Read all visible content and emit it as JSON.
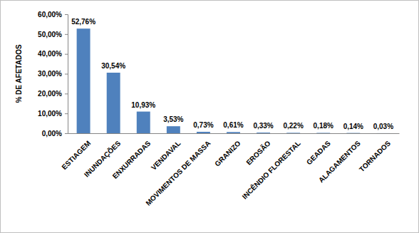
{
  "chart_data": {
    "type": "bar",
    "y_label": "% DE AFETADOS",
    "categories": [
      "ESTIAGEM",
      "INUNDAÇÕES",
      "ENXURRADAS",
      "VENDAVAL",
      "MOVIMENTOS DE MASSA",
      "GRANIZO",
      "EROSÃO",
      "INCÊNDIO FLORESTAL",
      "GEADAS",
      "ALAGAMENTOS",
      "TORNADOS"
    ],
    "values": [
      52.76,
      30.54,
      10.93,
      3.53,
      0.73,
      0.61,
      0.33,
      0.22,
      0.18,
      0.14,
      0.03
    ],
    "value_labels": [
      "52,76%",
      "30,54%",
      "10,93%",
      "3,53%",
      "0,73%",
      "0,61%",
      "0,33%",
      "0,22%",
      "0,18%",
      "0,14%",
      "0,03%"
    ],
    "color": "#4f81bd",
    "ylim": [
      0,
      60
    ],
    "yticks": [
      {
        "value": 0,
        "label": "0,00%"
      },
      {
        "value": 10,
        "label": "10,00%"
      },
      {
        "value": 20,
        "label": "20,00%"
      },
      {
        "value": 30,
        "label": "30,00%"
      },
      {
        "value": 40,
        "label": "40,00%"
      },
      {
        "value": 50,
        "label": "50,00%"
      },
      {
        "value": 60,
        "label": "60,00%"
      }
    ],
    "grid": false,
    "data_labels": true
  }
}
